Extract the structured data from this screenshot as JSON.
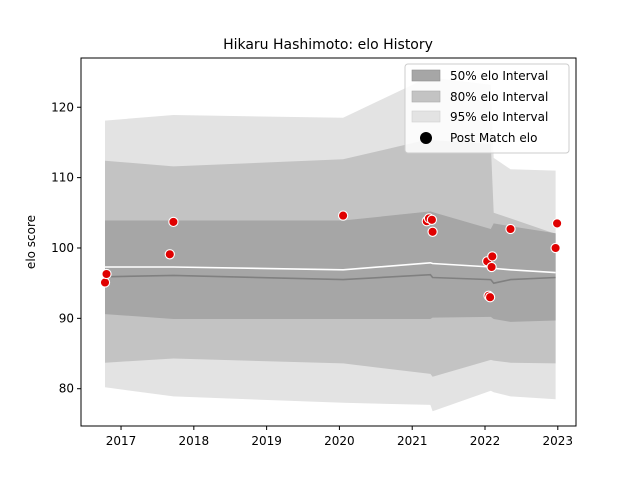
{
  "chart_data": {
    "type": "scatter",
    "title": "Hikaru Hashimoto: elo History",
    "xlabel": "",
    "ylabel": "elo score",
    "xlim": [
      2016.45,
      2023.25
    ],
    "ylim": [
      74.7,
      127.0
    ],
    "x_ticks": [
      2017,
      2018,
      2019,
      2020,
      2021,
      2022,
      2023
    ],
    "x_tick_labels": [
      "2017",
      "2018",
      "2019",
      "2020",
      "2021",
      "2022",
      "2023"
    ],
    "y_ticks": [
      80,
      90,
      100,
      110,
      120
    ],
    "y_tick_labels": [
      "80",
      "90",
      "100",
      "110",
      "120"
    ],
    "legend_position": "top-right",
    "legend": {
      "i50": "50% elo Interval",
      "i80": "80% elo Interval",
      "i95": "95% elo Interval",
      "post": "Post Match elo"
    },
    "colors": {
      "band50": "#a6a6a6",
      "band80": "#c3c3c3",
      "band95": "#e3e3e3",
      "median": "#808080",
      "mean": "#ffffff",
      "point": "#e00000",
      "point_edge": "#ffffff"
    },
    "band_x": [
      2016.78,
      2017.72,
      2020.05,
      2021.25,
      2021.28,
      2022.08,
      2022.12,
      2022.35,
      2022.97
    ],
    "band95_upper": [
      118.1,
      118.9,
      118.5,
      124.4,
      124.2,
      123.2,
      112.8,
      111.2,
      111.0
    ],
    "band95_lower": [
      80.2,
      78.9,
      78.0,
      77.7,
      76.8,
      79.7,
      79.5,
      78.9,
      78.5
    ],
    "band80_upper": [
      112.4,
      111.6,
      112.6,
      115.5,
      115.3,
      114.8,
      105.0,
      104.2,
      102.0
    ],
    "band80_lower": [
      83.7,
      84.3,
      83.6,
      82.1,
      81.7,
      84.1,
      84.0,
      83.7,
      83.6
    ],
    "band50_upper": [
      103.9,
      103.9,
      103.9,
      105.2,
      105.1,
      102.7,
      103.5,
      103.1,
      102.1
    ],
    "band50_lower": [
      90.6,
      89.9,
      89.9,
      89.9,
      90.1,
      90.2,
      89.9,
      89.5,
      89.7
    ],
    "median_line": [
      95.9,
      96.1,
      95.5,
      96.2,
      95.8,
      95.5,
      95.0,
      95.5,
      95.8
    ],
    "mean_line": [
      97.3,
      97.3,
      96.9,
      97.9,
      97.8,
      97.3,
      97.1,
      96.9,
      96.5
    ],
    "points": {
      "x": [
        2016.78,
        2016.8,
        2017.67,
        2017.72,
        2020.05,
        2021.2,
        2021.23,
        2021.27,
        2021.28,
        2022.03,
        2022.05,
        2022.07,
        2022.09,
        2022.1,
        2022.35,
        2022.97,
        2022.99
      ],
      "y": [
        95.1,
        96.3,
        99.1,
        103.7,
        104.6,
        103.8,
        104.2,
        104.0,
        102.3,
        98.1,
        93.2,
        93.0,
        97.3,
        98.8,
        102.7,
        100.0,
        103.5
      ]
    }
  }
}
